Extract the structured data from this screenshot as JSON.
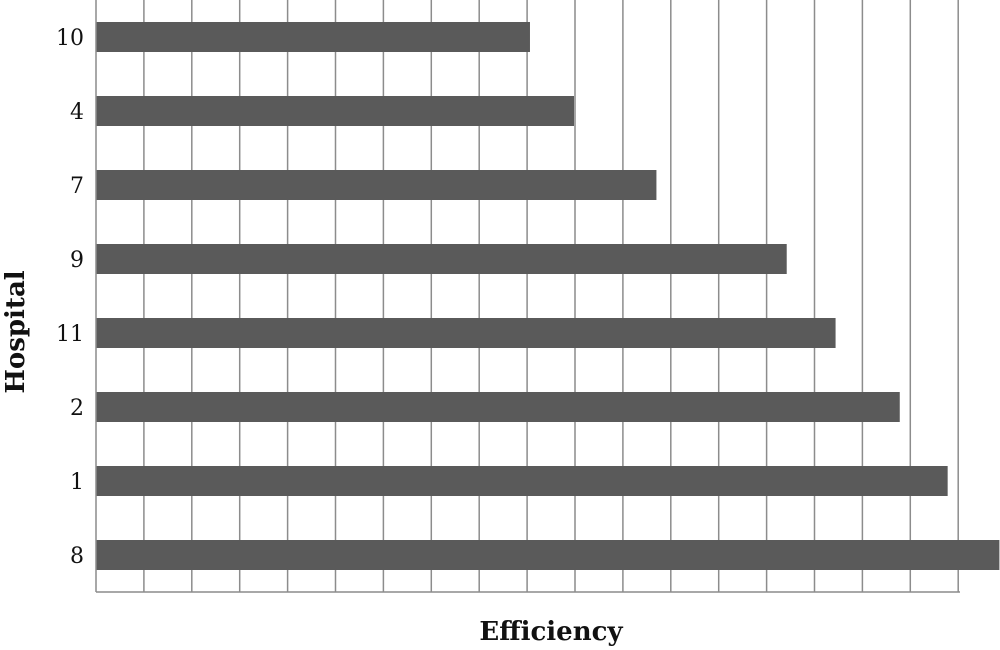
{
  "chart_data": {
    "type": "bar",
    "orientation": "horizontal",
    "title": "",
    "xlabel": "Efficiency",
    "ylabel": "Hospital",
    "categories": [
      "10",
      "4",
      "7",
      "9",
      "11",
      "2",
      "1",
      "8"
    ],
    "values": [
      0.453,
      0.499,
      0.585,
      0.721,
      0.772,
      0.839,
      0.889,
      0.943
    ],
    "xlim": [
      0,
      0.95
    ],
    "x_gridline_step": 0.05,
    "grid": true,
    "legend": "none",
    "bar_color": "#5a5a5a",
    "grid_color": "#8c8c8c"
  }
}
